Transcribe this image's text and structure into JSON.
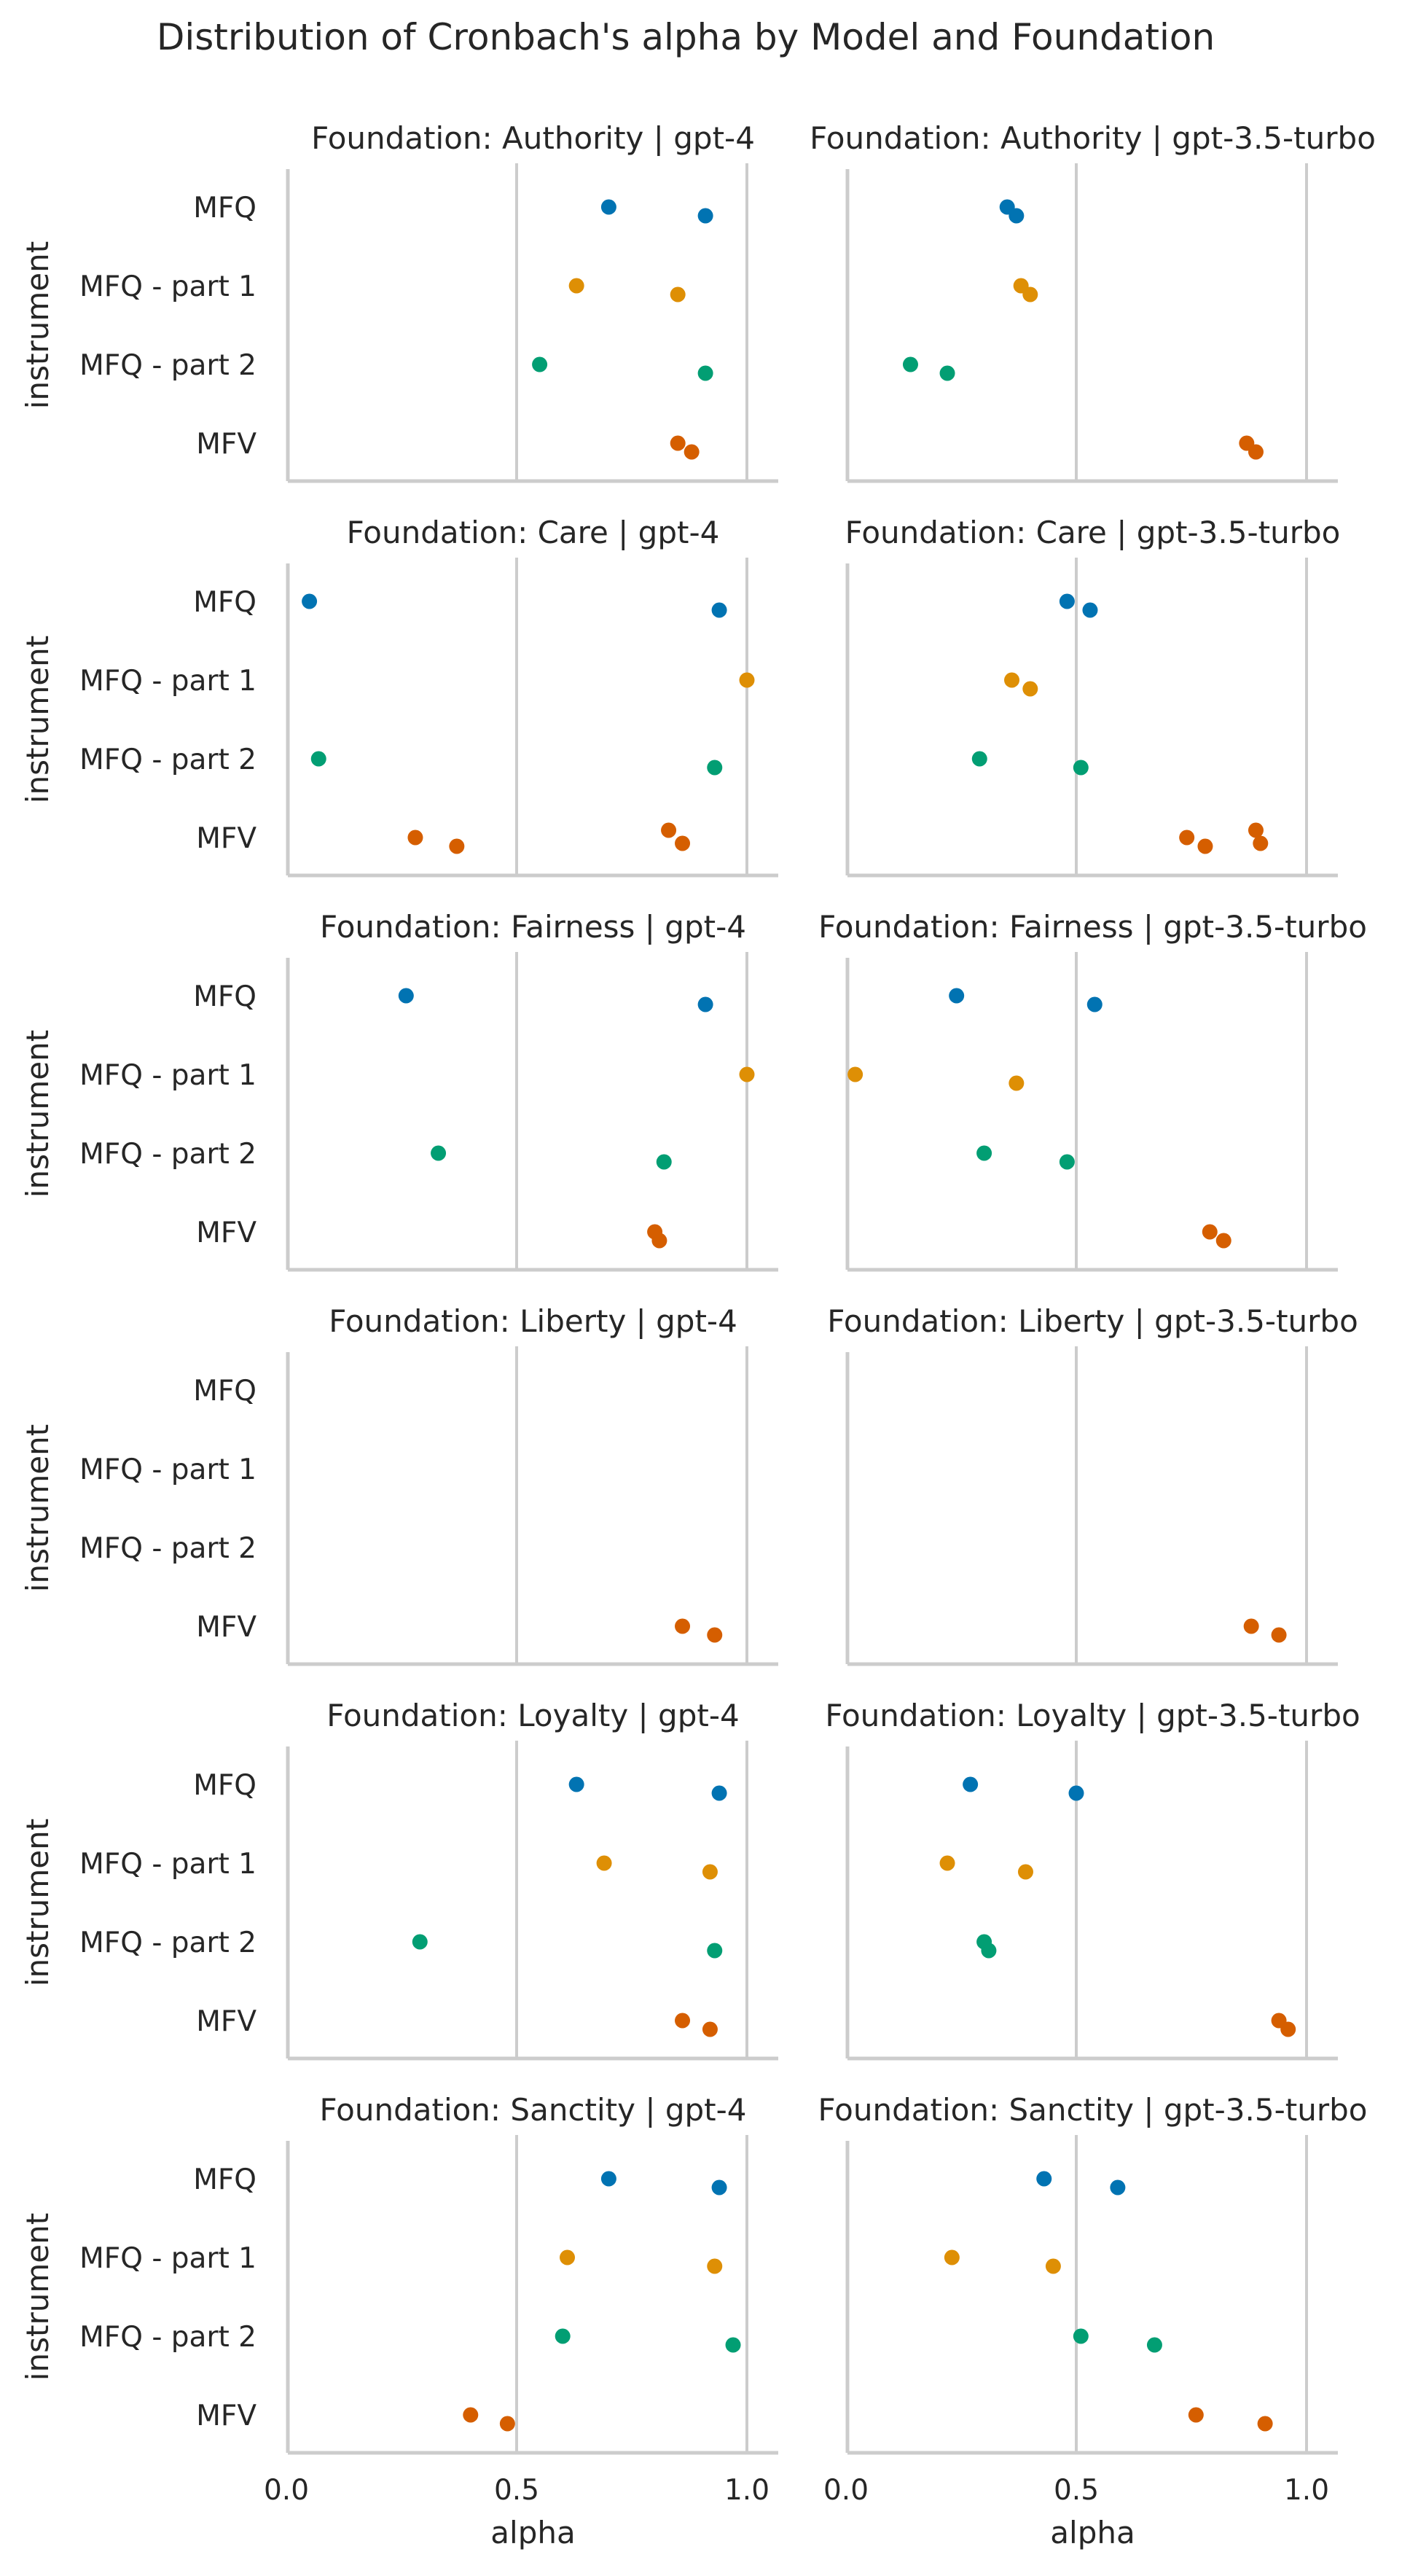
{
  "chart_data": {
    "type": "scatter",
    "title": "Distribution of Cronbach's alpha by Model and Foundation",
    "ylabel": "instrument",
    "xlabel": "alpha",
    "xlim": [
      -0.02,
      1.05
    ],
    "xticks": [
      "0.0",
      "0.5",
      "1.0"
    ],
    "xtick_values": [
      0,
      0.5,
      1.0
    ],
    "grid": "vertical gridlines at x ticks",
    "categories": [
      "MFQ",
      "MFQ - part 1",
      "MFQ - part 2",
      "MFV"
    ],
    "colors": {
      "MFQ": "#0173b2",
      "MFQ - part 1": "#de8f05",
      "MFQ - part 2": "#029e73",
      "MFV": "#d55e00"
    },
    "columns": [
      "gpt-4",
      "gpt-3.5-turbo"
    ],
    "rows": [
      "Authority",
      "Care",
      "Fairness",
      "Liberty",
      "Loyalty",
      "Sanctity"
    ],
    "panels": [
      {
        "title": "Foundation: Authority | gpt-4",
        "points": {
          "MFQ": [
            0.7,
            0.91
          ],
          "MFQ - part 1": [
            0.63,
            0.85
          ],
          "MFQ - part 2": [
            0.55,
            0.91
          ],
          "MFV": [
            0.85,
            0.88
          ]
        }
      },
      {
        "title": "Foundation: Authority | gpt-3.5-turbo",
        "points": {
          "MFQ": [
            0.35,
            0.37
          ],
          "MFQ - part 1": [
            0.38,
            0.4
          ],
          "MFQ - part 2": [
            0.14,
            0.22
          ],
          "MFV": [
            0.87,
            0.89
          ]
        }
      },
      {
        "title": "Foundation: Care | gpt-4",
        "points": {
          "MFQ": [
            0.05,
            0.94
          ],
          "MFQ - part 1": [
            1.0
          ],
          "MFQ - part 2": [
            0.07,
            0.93
          ],
          "MFV": [
            0.28,
            0.37,
            0.83,
            0.86
          ]
        }
      },
      {
        "title": "Foundation: Care | gpt-3.5-turbo",
        "points": {
          "MFQ": [
            0.48,
            0.53
          ],
          "MFQ - part 1": [
            0.36,
            0.4
          ],
          "MFQ - part 2": [
            0.29,
            0.51
          ],
          "MFV": [
            0.74,
            0.78,
            0.89,
            0.9
          ]
        }
      },
      {
        "title": "Foundation: Fairness | gpt-4",
        "points": {
          "MFQ": [
            0.26,
            0.91
          ],
          "MFQ - part 1": [
            1.0
          ],
          "MFQ - part 2": [
            0.33,
            0.82
          ],
          "MFV": [
            0.8,
            0.81
          ]
        }
      },
      {
        "title": "Foundation: Fairness | gpt-3.5-turbo",
        "points": {
          "MFQ": [
            0.24,
            0.54
          ],
          "MFQ - part 1": [
            0.02,
            0.37
          ],
          "MFQ - part 2": [
            0.3,
            0.48
          ],
          "MFV": [
            0.79,
            0.82
          ]
        }
      },
      {
        "title": "Foundation: Liberty | gpt-4",
        "points": {
          "MFQ": [],
          "MFQ - part 1": [],
          "MFQ - part 2": [],
          "MFV": [
            0.86,
            0.93
          ]
        }
      },
      {
        "title": "Foundation: Liberty | gpt-3.5-turbo",
        "points": {
          "MFQ": [],
          "MFQ - part 1": [],
          "MFQ - part 2": [],
          "MFV": [
            0.88,
            0.94
          ]
        }
      },
      {
        "title": "Foundation: Loyalty | gpt-4",
        "points": {
          "MFQ": [
            0.63,
            0.94
          ],
          "MFQ - part 1": [
            0.69,
            0.92
          ],
          "MFQ - part 2": [
            0.29,
            0.93
          ],
          "MFV": [
            0.86,
            0.92
          ]
        }
      },
      {
        "title": "Foundation: Loyalty | gpt-3.5-turbo",
        "points": {
          "MFQ": [
            0.27,
            0.5
          ],
          "MFQ - part 1": [
            0.22,
            0.39
          ],
          "MFQ - part 2": [
            0.3,
            0.31
          ],
          "MFV": [
            0.94,
            0.96
          ]
        }
      },
      {
        "title": "Foundation: Sanctity | gpt-4",
        "points": {
          "MFQ": [
            0.7,
            0.94
          ],
          "MFQ - part 1": [
            0.61,
            0.93
          ],
          "MFQ - part 2": [
            0.6,
            0.97
          ],
          "MFV": [
            0.4,
            0.48
          ]
        }
      },
      {
        "title": "Foundation: Sanctity | gpt-3.5-turbo",
        "points": {
          "MFQ": [
            0.43,
            0.59
          ],
          "MFQ - part 1": [
            0.23,
            0.45
          ],
          "MFQ - part 2": [
            0.51,
            0.67
          ],
          "MFV": [
            0.76,
            0.91
          ]
        }
      }
    ]
  }
}
